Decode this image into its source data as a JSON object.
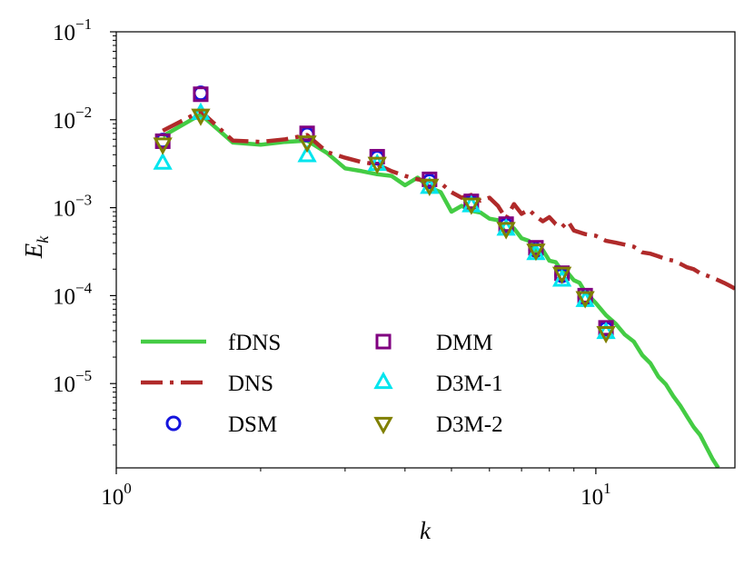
{
  "chart_data": {
    "type": "line",
    "title": "",
    "xlabel": "k",
    "ylabel": "E",
    "ylabel_subscript": "k",
    "xscale": "log",
    "yscale": "log",
    "xlim": [
      1,
      19.5
    ],
    "ylim": [
      1.1e-06,
      0.1
    ],
    "x_ticks": [
      {
        "value": 1,
        "base": "10",
        "exp": "0"
      },
      {
        "value": 10,
        "base": "10",
        "exp": "1"
      }
    ],
    "y_ticks": [
      {
        "value": 0.1,
        "base": "10",
        "exp": "−1"
      },
      {
        "value": 0.01,
        "base": "10",
        "exp": "−2"
      },
      {
        "value": 0.001,
        "base": "10",
        "exp": "−3"
      },
      {
        "value": 0.0001,
        "base": "10",
        "exp": "−4"
      },
      {
        "value": 1e-05,
        "base": "10",
        "exp": "−5"
      }
    ],
    "series": [
      {
        "name": "fDNS",
        "kind": "line",
        "style": "solid",
        "color": "#44cc44",
        "x": [
          1.25,
          1.5,
          1.75,
          2.0,
          2.25,
          2.5,
          2.75,
          3.0,
          3.25,
          3.5,
          3.75,
          4.0,
          4.25,
          4.5,
          4.75,
          5.0,
          5.25,
          5.5,
          5.75,
          6.0,
          6.25,
          6.5,
          6.75,
          7.0,
          7.25,
          7.5,
          7.75,
          8.0,
          8.25,
          8.5,
          8.75,
          9.0,
          9.25,
          9.5,
          9.75,
          10.0,
          10.5,
          11.0,
          11.5,
          12.0,
          12.5,
          13.0,
          13.5,
          14.0,
          14.5,
          15.0,
          15.5,
          16.0,
          16.5,
          17.0,
          17.5,
          18.0
        ],
        "y": [
          0.0065,
          0.0115,
          0.0055,
          0.0052,
          0.0056,
          0.0058,
          0.0042,
          0.0028,
          0.0026,
          0.0024,
          0.0023,
          0.0018,
          0.0022,
          0.0017,
          0.0015,
          0.0009,
          0.00105,
          0.00092,
          0.00088,
          0.00075,
          0.00072,
          0.0005,
          0.00058,
          0.00045,
          0.00042,
          0.00032,
          0.00033,
          0.00025,
          0.00024,
          0.00019,
          0.00018,
          0.00015,
          0.00014,
          0.00011,
          9.5e-05,
          8.2e-05,
          6e-05,
          4.8e-05,
          3.6e-05,
          3e-05,
          2.1e-05,
          1.7e-05,
          1.2e-05,
          9.8e-06,
          7.2e-06,
          5.6e-06,
          4.2e-06,
          3.2e-06,
          2.6e-06,
          1.9e-06,
          1.4e-06,
          1.1e-06
        ]
      },
      {
        "name": "DNS",
        "kind": "line",
        "style": "dashdot",
        "color": "#b02a2a",
        "x": [
          1.25,
          1.5,
          1.75,
          2.0,
          2.25,
          2.5,
          2.75,
          3.0,
          3.25,
          3.5,
          3.75,
          4.0,
          4.25,
          4.5,
          4.75,
          5.0,
          5.25,
          5.5,
          5.75,
          6.0,
          6.25,
          6.5,
          6.75,
          7.0,
          7.25,
          7.5,
          7.75,
          8.0,
          8.25,
          8.5,
          8.75,
          9.0,
          9.5,
          10.0,
          10.5,
          11.0,
          11.5,
          12.0,
          12.5,
          13.0,
          13.5,
          14.0,
          14.5,
          15.0,
          15.5,
          16.0,
          16.5,
          17.0,
          17.5,
          18.0,
          18.5,
          19.0,
          19.5
        ],
        "y": [
          0.0075,
          0.0125,
          0.0058,
          0.0056,
          0.006,
          0.0067,
          0.0043,
          0.0037,
          0.0033,
          0.0031,
          0.0026,
          0.0023,
          0.0021,
          0.002,
          0.0019,
          0.0015,
          0.0013,
          0.0014,
          0.0012,
          0.0013,
          0.00105,
          0.00075,
          0.0011,
          0.00085,
          0.00095,
          0.0008,
          0.0007,
          0.00078,
          0.00065,
          0.0006,
          0.0007,
          0.00055,
          0.0005,
          0.00048,
          0.00042,
          0.0004,
          0.00038,
          0.00036,
          0.00031,
          0.0003,
          0.00028,
          0.00026,
          0.00025,
          0.00023,
          0.00021,
          0.0002,
          0.00018,
          0.00017,
          0.00016,
          0.00015,
          0.00014,
          0.00013,
          0.00012
        ]
      },
      {
        "name": "DSM",
        "kind": "marker",
        "marker": "circle",
        "color": "#1515dd",
        "x": [
          1.25,
          1.5,
          2.5,
          3.5,
          4.5,
          5.5,
          6.5,
          7.5,
          8.5,
          9.5,
          10.5
        ],
        "y": [
          0.0058,
          0.02,
          0.0068,
          0.0037,
          0.002,
          0.00115,
          0.00063,
          0.00033,
          0.00017,
          9.5e-05,
          4.2e-05
        ]
      },
      {
        "name": "DMM",
        "kind": "marker",
        "marker": "square",
        "color": "#800080",
        "x": [
          1.25,
          1.5,
          2.5,
          3.5,
          4.5,
          5.5,
          6.5,
          7.5,
          8.5,
          9.5,
          10.5
        ],
        "y": [
          0.0057,
          0.0195,
          0.007,
          0.0038,
          0.0021,
          0.00118,
          0.00065,
          0.00035,
          0.00018,
          0.0001,
          4.3e-05
        ]
      },
      {
        "name": "D3M-1",
        "kind": "marker",
        "marker": "triangle-up",
        "color": "#00e5ee",
        "x": [
          1.25,
          1.5,
          2.5,
          3.5,
          4.5,
          5.5,
          6.5,
          7.5,
          8.5,
          9.5,
          10.5
        ],
        "y": [
          0.0032,
          0.0118,
          0.0039,
          0.0031,
          0.0017,
          0.00105,
          0.00057,
          0.0003,
          0.00015,
          8.8e-05,
          3.8e-05
        ]
      },
      {
        "name": "D3M-2",
        "kind": "marker",
        "marker": "triangle-down",
        "color": "#808000",
        "x": [
          1.25,
          1.5,
          2.5,
          3.5,
          4.5,
          5.5,
          6.5,
          7.5,
          8.5,
          9.5,
          10.5
        ],
        "y": [
          0.0053,
          0.0113,
          0.0056,
          0.0032,
          0.0018,
          0.0011,
          0.00058,
          0.00033,
          0.00018,
          9.5e-05,
          3.8e-05
        ]
      }
    ],
    "legend": {
      "position": "lower-left",
      "columns": 2,
      "entries": [
        "fDNS",
        "DNS",
        "DSM",
        "DMM",
        "D3M-1",
        "D3M-2"
      ]
    }
  }
}
